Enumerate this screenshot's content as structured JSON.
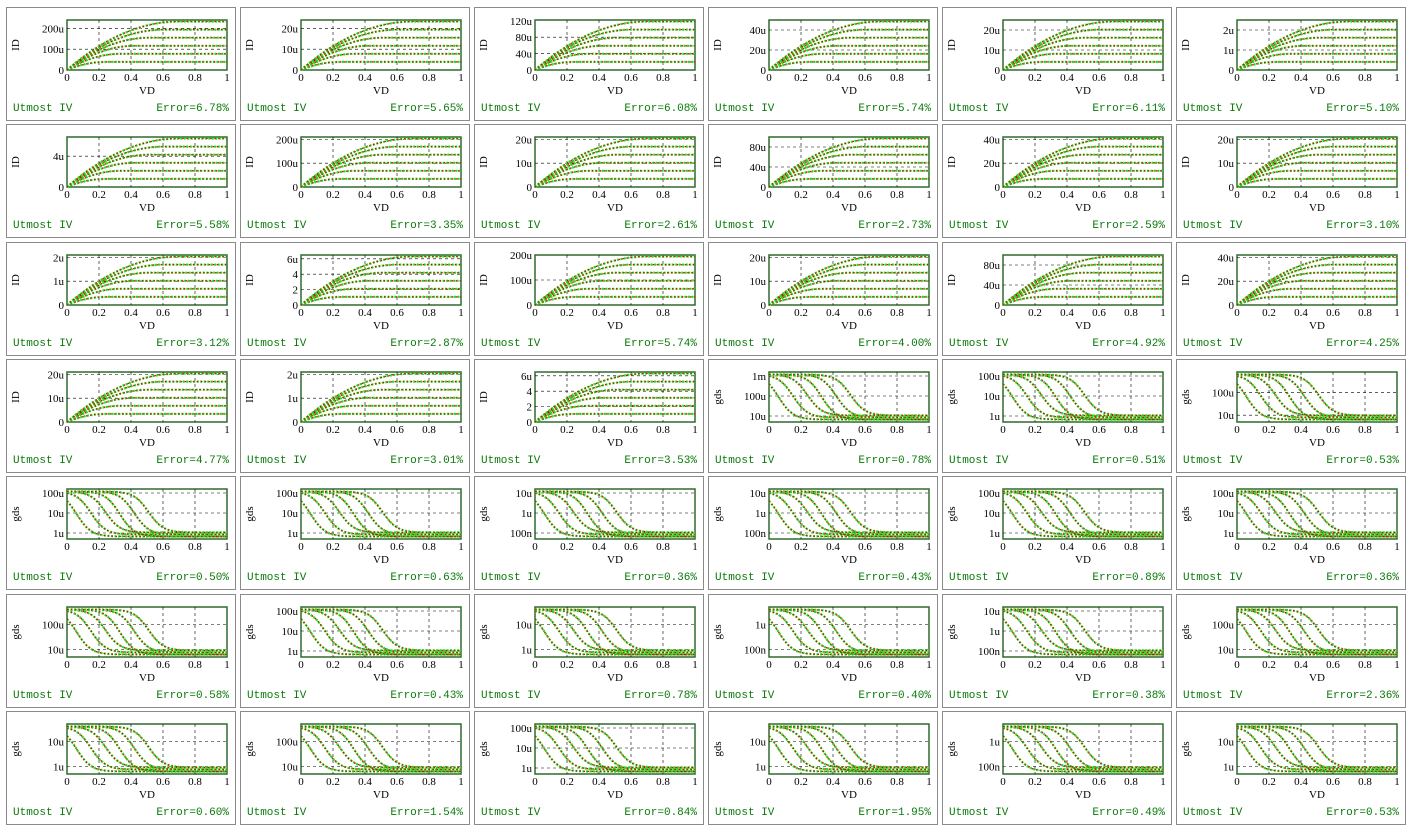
{
  "colors": {
    "frame": "#2e6b2e",
    "grid": "#000000",
    "measured": "#22dd22",
    "simulated": "#cc1100",
    "footer": "#0a7a0a"
  },
  "footer_label": "Utmost IV",
  "chart_data": [
    {
      "type": "line",
      "kind": "id",
      "xlabel": "VD",
      "ylabel": "ID",
      "xticks": [
        "0",
        "0.2",
        "0.4",
        "0.6",
        "0.8",
        "1"
      ],
      "yticks": [
        "0",
        "100u",
        "200u"
      ],
      "ymax": 240,
      "error": "Error=6.78%"
    },
    {
      "type": "line",
      "kind": "id",
      "xlabel": "VD",
      "ylabel": "ID",
      "xticks": [
        "0",
        "0.2",
        "0.4",
        "0.6",
        "0.8",
        "1"
      ],
      "yticks": [
        "0",
        "10u",
        "20u"
      ],
      "ymax": 24,
      "error": "Error=5.65%"
    },
    {
      "type": "line",
      "kind": "id",
      "xlabel": "VD",
      "ylabel": "ID",
      "xticks": [
        "0",
        "0.2",
        "0.4",
        "0.6",
        "0.8",
        "1"
      ],
      "yticks": [
        "0",
        "40u",
        "80u",
        "120u"
      ],
      "ymax": 122,
      "error": "Error=6.08%"
    },
    {
      "type": "line",
      "kind": "id",
      "xlabel": "VD",
      "ylabel": "ID",
      "xticks": [
        "0",
        "0.2",
        "0.4",
        "0.6",
        "0.8",
        "1"
      ],
      "yticks": [
        "0",
        "20u",
        "40u"
      ],
      "ymax": 50,
      "error": "Error=5.74%"
    },
    {
      "type": "line",
      "kind": "id",
      "xlabel": "VD",
      "ylabel": "ID",
      "xticks": [
        "0",
        "0.2",
        "0.4",
        "0.6",
        "0.8",
        "1"
      ],
      "yticks": [
        "0",
        "10u",
        "20u"
      ],
      "ymax": 25,
      "error": "Error=6.11%"
    },
    {
      "type": "line",
      "kind": "id",
      "xlabel": "VD",
      "ylabel": "ID",
      "xticks": [
        "0",
        "0.2",
        "0.4",
        "0.6",
        "0.8",
        "1"
      ],
      "yticks": [
        "0",
        "1u",
        "2u"
      ],
      "ymax": 2.5,
      "error": "Error=5.10%"
    },
    {
      "type": "line",
      "kind": "id",
      "xlabel": "VD",
      "ylabel": "ID",
      "xticks": [
        "0",
        "0.2",
        "0.4",
        "0.6",
        "0.8",
        "1"
      ],
      "yticks": [
        "0",
        "4u"
      ],
      "ymax": 6.5,
      "error": "Error=5.58%"
    },
    {
      "type": "line",
      "kind": "id",
      "xlabel": "VD",
      "ylabel": "ID",
      "xticks": [
        "0",
        "0.2",
        "0.4",
        "0.6",
        "0.8",
        "1"
      ],
      "yticks": [
        "0",
        "100u",
        "200u"
      ],
      "ymax": 210,
      "error": "Error=3.35%"
    },
    {
      "type": "line",
      "kind": "id",
      "xlabel": "VD",
      "ylabel": "ID",
      "xticks": [
        "0",
        "0.2",
        "0.4",
        "0.6",
        "0.8",
        "1"
      ],
      "yticks": [
        "0",
        "10u",
        "20u"
      ],
      "ymax": 21,
      "error": "Error=2.61%"
    },
    {
      "type": "line",
      "kind": "id",
      "xlabel": "VD",
      "ylabel": "ID",
      "xticks": [
        "0",
        "0.2",
        "0.4",
        "0.6",
        "0.8",
        "1"
      ],
      "yticks": [
        "0",
        "40u",
        "80u"
      ],
      "ymax": 100,
      "error": "Error=2.73%"
    },
    {
      "type": "line",
      "kind": "id",
      "xlabel": "VD",
      "ylabel": "ID",
      "xticks": [
        "0",
        "0.2",
        "0.4",
        "0.6",
        "0.8",
        "1"
      ],
      "yticks": [
        "0",
        "20u",
        "40u"
      ],
      "ymax": 42,
      "error": "Error=2.59%"
    },
    {
      "type": "line",
      "kind": "id",
      "xlabel": "VD",
      "ylabel": "ID",
      "xticks": [
        "0",
        "0.2",
        "0.4",
        "0.6",
        "0.8",
        "1"
      ],
      "yticks": [
        "0",
        "10u",
        "20u"
      ],
      "ymax": 21,
      "error": "Error=3.10%"
    },
    {
      "type": "line",
      "kind": "id",
      "xlabel": "VD",
      "ylabel": "ID",
      "xticks": [
        "0",
        "0.2",
        "0.4",
        "0.6",
        "0.8",
        "1"
      ],
      "yticks": [
        "0",
        "1u",
        "2u"
      ],
      "ymax": 2.1,
      "error": "Error=3.12%"
    },
    {
      "type": "line",
      "kind": "id",
      "xlabel": "VD",
      "ylabel": "ID",
      "xticks": [
        "0",
        "0.2",
        "0.4",
        "0.6",
        "0.8",
        "1"
      ],
      "yticks": [
        "0",
        "2",
        "4",
        "6u"
      ],
      "ymax": 6.5,
      "error": "Error=2.87%"
    },
    {
      "type": "line",
      "kind": "id",
      "xlabel": "VD",
      "ylabel": "ID",
      "xticks": [
        "0",
        "0.2",
        "0.4",
        "0.6",
        "0.8",
        "1"
      ],
      "yticks": [
        "0",
        "100u",
        "200u"
      ],
      "ymax": 200,
      "error": "Error=5.74%"
    },
    {
      "type": "line",
      "kind": "id",
      "xlabel": "VD",
      "ylabel": "ID",
      "xticks": [
        "0",
        "0.2",
        "0.4",
        "0.6",
        "0.8",
        "1"
      ],
      "yticks": [
        "0",
        "10u",
        "20u"
      ],
      "ymax": 21,
      "error": "Error=4.00%"
    },
    {
      "type": "line",
      "kind": "id",
      "xlabel": "VD",
      "ylabel": "ID",
      "xticks": [
        "0",
        "0.2",
        "0.4",
        "0.6",
        "0.8",
        "1"
      ],
      "yticks": [
        "0",
        "40u",
        "80u"
      ],
      "ymax": 100,
      "error": "Error=4.92%"
    },
    {
      "type": "line",
      "kind": "id",
      "xlabel": "VD",
      "ylabel": "ID",
      "xticks": [
        "0",
        "0.2",
        "0.4",
        "0.6",
        "0.8",
        "1"
      ],
      "yticks": [
        "0",
        "20u",
        "40u"
      ],
      "ymax": 42,
      "error": "Error=4.25%"
    },
    {
      "type": "line",
      "kind": "id",
      "xlabel": "VD",
      "ylabel": "ID",
      "xticks": [
        "0",
        "0.2",
        "0.4",
        "0.6",
        "0.8",
        "1"
      ],
      "yticks": [
        "0",
        "10u",
        "20u"
      ],
      "ymax": 21,
      "error": "Error=4.77%"
    },
    {
      "type": "line",
      "kind": "id",
      "xlabel": "VD",
      "ylabel": "ID",
      "xticks": [
        "0",
        "0.2",
        "0.4",
        "0.6",
        "0.8",
        "1"
      ],
      "yticks": [
        "0",
        "1u",
        "2u"
      ],
      "ymax": 2.1,
      "error": "Error=3.01%"
    },
    {
      "type": "line",
      "kind": "id",
      "xlabel": "VD",
      "ylabel": "ID",
      "xticks": [
        "0",
        "0.2",
        "0.4",
        "0.6",
        "0.8",
        "1"
      ],
      "yticks": [
        "0",
        "2",
        "4",
        "6u"
      ],
      "ymax": 6.5,
      "error": "Error=3.53%"
    },
    {
      "type": "line",
      "kind": "gds",
      "xlabel": "VD",
      "ylabel": "gds",
      "xticks": [
        "0",
        "0.2",
        "0.4",
        "0.6",
        "0.8",
        "1"
      ],
      "yticks": [
        "10u",
        "100u",
        "1m"
      ],
      "decades": 2.5,
      "error": "Error=0.78%"
    },
    {
      "type": "line",
      "kind": "gds",
      "xlabel": "VD",
      "ylabel": "gds",
      "xticks": [
        "0",
        "0.2",
        "0.4",
        "0.6",
        "0.8",
        "1"
      ],
      "yticks": [
        "1u",
        "10u",
        "100u"
      ],
      "decades": 2.5,
      "error": "Error=0.51%"
    },
    {
      "type": "line",
      "kind": "gds",
      "xlabel": "VD",
      "ylabel": "gds",
      "xticks": [
        "0",
        "0.2",
        "0.4",
        "0.6",
        "0.8",
        "1"
      ],
      "yticks": [
        "10u",
        "100u"
      ],
      "decades": 2.2,
      "error": "Error=0.53%"
    },
    {
      "type": "line",
      "kind": "gds",
      "xlabel": "VD",
      "ylabel": "gds",
      "xticks": [
        "0",
        "0.2",
        "0.4",
        "0.6",
        "0.8",
        "1"
      ],
      "yticks": [
        "1u",
        "10u",
        "100u"
      ],
      "decades": 2.5,
      "error": "Error=0.50%"
    },
    {
      "type": "line",
      "kind": "gds",
      "xlabel": "VD",
      "ylabel": "gds",
      "xticks": [
        "0",
        "0.2",
        "0.4",
        "0.6",
        "0.8",
        "1"
      ],
      "yticks": [
        "1u",
        "10u",
        "100u"
      ],
      "decades": 2.5,
      "error": "Error=0.63%"
    },
    {
      "type": "line",
      "kind": "gds",
      "xlabel": "VD",
      "ylabel": "gds",
      "xticks": [
        "0",
        "0.2",
        "0.4",
        "0.6",
        "0.8",
        "1"
      ],
      "yticks": [
        "100n",
        "1u",
        "10u"
      ],
      "decades": 2.5,
      "error": "Error=0.36%"
    },
    {
      "type": "line",
      "kind": "gds",
      "xlabel": "VD",
      "ylabel": "gds",
      "xticks": [
        "0",
        "0.2",
        "0.4",
        "0.6",
        "0.8",
        "1"
      ],
      "yticks": [
        "100n",
        "1u",
        "10u"
      ],
      "decades": 2.5,
      "error": "Error=0.43%"
    },
    {
      "type": "line",
      "kind": "gds",
      "xlabel": "VD",
      "ylabel": "gds",
      "xticks": [
        "0",
        "0.2",
        "0.4",
        "0.6",
        "0.8",
        "1"
      ],
      "yticks": [
        "1u",
        "10u",
        "100u"
      ],
      "decades": 2.5,
      "error": "Error=0.89%"
    },
    {
      "type": "line",
      "kind": "gds",
      "xlabel": "VD",
      "ylabel": "gds",
      "xticks": [
        "0",
        "0.2",
        "0.4",
        "0.6",
        "0.8",
        "1"
      ],
      "yticks": [
        "1u",
        "10u",
        "100u"
      ],
      "decades": 2.5,
      "error": "Error=0.36%"
    },
    {
      "type": "line",
      "kind": "gds",
      "xlabel": "VD",
      "ylabel": "gds",
      "xticks": [
        "0",
        "0.2",
        "0.4",
        "0.6",
        "0.8",
        "1"
      ],
      "yticks": [
        "10u",
        "100u"
      ],
      "decades": 2.0,
      "error": "Error=0.58%"
    },
    {
      "type": "line",
      "kind": "gds",
      "xlabel": "VD",
      "ylabel": "gds",
      "xticks": [
        "0",
        "0.2",
        "0.4",
        "0.6",
        "0.8",
        "1"
      ],
      "yticks": [
        "1u",
        "10u",
        "100u"
      ],
      "decades": 2.5,
      "error": "Error=0.43%"
    },
    {
      "type": "line",
      "kind": "gds",
      "xlabel": "VD",
      "ylabel": "gds",
      "xticks": [
        "0",
        "0.2",
        "0.4",
        "0.6",
        "0.8",
        "1"
      ],
      "yticks": [
        "1u",
        "10u"
      ],
      "decades": 2.0,
      "error": "Error=0.78%"
    },
    {
      "type": "line",
      "kind": "gds",
      "xlabel": "VD",
      "ylabel": "gds",
      "xticks": [
        "0",
        "0.2",
        "0.4",
        "0.6",
        "0.8",
        "1"
      ],
      "yticks": [
        "100n",
        "1u"
      ],
      "decades": 2.0,
      "error": "Error=0.40%"
    },
    {
      "type": "line",
      "kind": "gds",
      "xlabel": "VD",
      "ylabel": "gds",
      "xticks": [
        "0",
        "0.2",
        "0.4",
        "0.6",
        "0.8",
        "1"
      ],
      "yticks": [
        "100n",
        "1u",
        "10u"
      ],
      "decades": 2.5,
      "error": "Error=0.38%"
    },
    {
      "type": "line",
      "kind": "gds",
      "xlabel": "VD",
      "ylabel": "gds",
      "xticks": [
        "0",
        "0.2",
        "0.4",
        "0.6",
        "0.8",
        "1"
      ],
      "yticks": [
        "10u",
        "100u"
      ],
      "decades": 2.0,
      "error": "Error=2.36%"
    },
    {
      "type": "line",
      "kind": "gds",
      "xlabel": "VD",
      "ylabel": "gds",
      "xticks": [
        "0",
        "0.2",
        "0.4",
        "0.6",
        "0.8",
        "1"
      ],
      "yticks": [
        "1u",
        "10u"
      ],
      "decades": 2.0,
      "error": "Error=0.60%"
    },
    {
      "type": "line",
      "kind": "gds",
      "xlabel": "VD",
      "ylabel": "gds",
      "xticks": [
        "0",
        "0.2",
        "0.4",
        "0.6",
        "0.8",
        "1"
      ],
      "yticks": [
        "10u",
        "100u"
      ],
      "decades": 2.0,
      "error": "Error=1.54%"
    },
    {
      "type": "line",
      "kind": "gds",
      "xlabel": "VD",
      "ylabel": "gds",
      "xticks": [
        "0",
        "0.2",
        "0.4",
        "0.6",
        "0.8",
        "1"
      ],
      "yticks": [
        "1u",
        "10u",
        "100u"
      ],
      "decades": 2.5,
      "error": "Error=0.84%"
    },
    {
      "type": "line",
      "kind": "gds",
      "xlabel": "VD",
      "ylabel": "gds",
      "xticks": [
        "0",
        "0.2",
        "0.4",
        "0.6",
        "0.8",
        "1"
      ],
      "yticks": [
        "1u",
        "10u"
      ],
      "decades": 2.0,
      "error": "Error=1.95%"
    },
    {
      "type": "line",
      "kind": "gds",
      "xlabel": "VD",
      "ylabel": "gds",
      "xticks": [
        "0",
        "0.2",
        "0.4",
        "0.6",
        "0.8",
        "1"
      ],
      "yticks": [
        "100n",
        "1u"
      ],
      "decades": 2.0,
      "error": "Error=0.49%"
    },
    {
      "type": "line",
      "kind": "gds",
      "xlabel": "VD",
      "ylabel": "gds",
      "xticks": [
        "0",
        "0.2",
        "0.4",
        "0.6",
        "0.8",
        "1"
      ],
      "yticks": [
        "1u",
        "10u"
      ],
      "decades": 2.0,
      "error": "Error=0.53%"
    }
  ]
}
